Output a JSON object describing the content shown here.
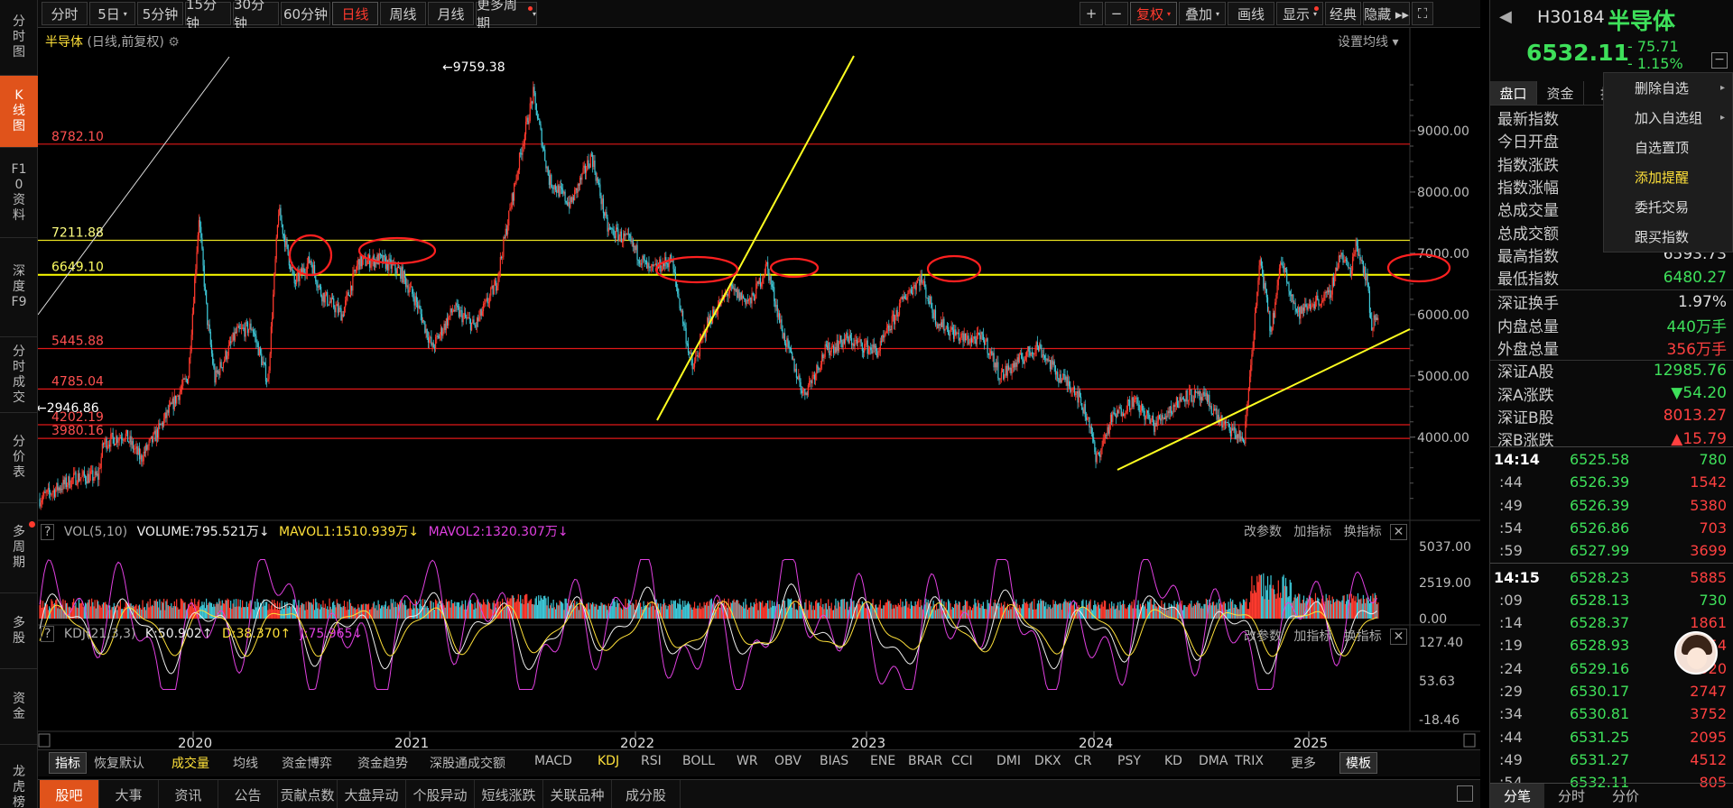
{
  "leftnav": [
    {
      "label": "分时图",
      "active": false
    },
    {
      "label": "K线图",
      "active": true
    },
    {
      "label": "F10资料",
      "active": false
    },
    {
      "label": "深度F9",
      "active": false
    },
    {
      "label": "分时成交",
      "active": false
    },
    {
      "label": "分价表",
      "active": false
    },
    {
      "label": "多周期",
      "active": false
    },
    {
      "label": "多股",
      "active": false
    },
    {
      "label": "资金",
      "active": false
    },
    {
      "label": "龙虎榜",
      "active": false
    }
  ],
  "toolbar": {
    "periods": [
      {
        "label": "分时"
      },
      {
        "label": "5日",
        "arrow": "▾"
      },
      {
        "label": "5分钟"
      },
      {
        "label": "15分钟"
      },
      {
        "label": "30分钟"
      },
      {
        "label": "60分钟"
      },
      {
        "label": "日线",
        "active": true
      },
      {
        "label": "周线"
      },
      {
        "label": "月线"
      },
      {
        "label": "更多周期",
        "arrow": "▾",
        "dot": true
      }
    ],
    "right": [
      {
        "label": "+"
      },
      {
        "label": "−"
      },
      {
        "label": "复权",
        "arrow": "▾",
        "active": true
      },
      {
        "label": "叠加",
        "arrow": "▾"
      },
      {
        "label": "画线"
      },
      {
        "label": "显示",
        "arrow": "▾",
        "dot": true
      },
      {
        "label": "经典"
      },
      {
        "label": "隐藏 ▸▸"
      },
      {
        "label": "⛶"
      }
    ]
  },
  "main": {
    "title": "半导体",
    "subtitle": "(日线,前复权)",
    "settings": "设置均线 ▾",
    "hlines": [
      {
        "label": "8782.10",
        "value": 8782.1,
        "color": "#e01818"
      },
      {
        "label": "7211.88",
        "value": 7211.88,
        "color": "#e8e020"
      },
      {
        "label": "6649.10",
        "value": 6649.1,
        "color": "#ffff00"
      },
      {
        "label": "5445.88",
        "value": 5445.88,
        "color": "#e01818"
      },
      {
        "label": "4785.04",
        "value": 4785.04,
        "color": "#e01818"
      },
      {
        "label": "4202.19",
        "value": 4202.19,
        "color": "#e01818"
      },
      {
        "label": "3980.16",
        "value": 3980.16,
        "color": "#e01818"
      }
    ],
    "yticks": [
      "9000.00",
      "8000.00",
      "7000.00",
      "6000.00",
      "5000.00",
      "4000.00"
    ],
    "high_label": "←9759.38",
    "low_label": "←2946.86",
    "years": [
      "2020",
      "2021",
      "2022",
      "2023",
      "2024",
      "2025"
    ]
  },
  "vol": {
    "name": "VOL(5,10)",
    "volume": "VOLUME:795.521万",
    "mavol1": "MAVOL1:1510.939万",
    "mavol2": "MAVOL2:1320.307万",
    "yticks": [
      "5037.00",
      "2519.00",
      "0.00"
    ],
    "buttons": [
      "改参数",
      "加指标",
      "换指标"
    ]
  },
  "kdj": {
    "name": "KDJ(21,3,3)",
    "k": "K:50.902",
    "d": "D:38.370",
    "j": "J:75.965",
    "yticks": [
      "127.40",
      "53.63",
      "-18.46"
    ],
    "buttons": [
      "改参数",
      "加指标",
      "换指标"
    ]
  },
  "indicators": [
    "指标",
    "恢复默认",
    "成交量",
    "均线",
    "资金博弈",
    "资金趋势",
    "深股通成交额",
    "MACD",
    "KDJ",
    "RSI",
    "BOLL",
    "WR",
    "OBV",
    "BIAS",
    "ENE",
    "BRAR",
    "CCI",
    "DMI",
    "DKX",
    "CR",
    "PSY",
    "KD",
    "DMA",
    "TRIX",
    "更多",
    "模板"
  ],
  "bottom_tabs": [
    "股吧",
    "大事",
    "资讯",
    "公告",
    "贡献点数",
    "大盘异动",
    "个股异动",
    "短线涨跌",
    "关联品种",
    "成分股"
  ],
  "quote": {
    "code": "H30184",
    "name": "半导体",
    "price": "6532.11",
    "change": "- 75.71",
    "pct": "- 1.15%",
    "tabs": [
      "盘口",
      "资金",
      "指"
    ],
    "rows": [
      {
        "k": "最新指数",
        "v": ""
      },
      {
        "k": "今日开盘",
        "v": ""
      },
      {
        "k": "指数涨跌",
        "v": ""
      },
      {
        "k": "指数涨幅",
        "v": ""
      },
      {
        "k": "总成交量",
        "v": ""
      },
      {
        "k": "总成交额",
        "v": ""
      },
      {
        "k": "最高指数",
        "v": "6593.73"
      },
      {
        "k": "最低指数",
        "v": "6480.27",
        "c": "g"
      },
      {
        "k": "深证换手",
        "v": "1.97%",
        "c": "w"
      },
      {
        "k": "内盘总量",
        "v": "440万手",
        "c": "g"
      },
      {
        "k": "外盘总量",
        "v": "356万手",
        "c": "r"
      },
      {
        "k": "深证A股",
        "v": "12985.76",
        "c": "g"
      },
      {
        "k": "深A涨跌",
        "v": "▼54.20",
        "c": "g"
      },
      {
        "k": "深证B股",
        "v": "8013.27",
        "c": "r"
      },
      {
        "k": "深B涨跌",
        "v": "▲15.79",
        "c": "r"
      }
    ],
    "ticks": [
      {
        "t": "14:14",
        "p": "6525.58",
        "v": "780",
        "vc": "g",
        "bold": true
      },
      {
        "t": ":44",
        "p": "6526.39",
        "v": "1542",
        "vc": "r"
      },
      {
        "t": ":49",
        "p": "6526.39",
        "v": "5380",
        "vc": "r"
      },
      {
        "t": ":54",
        "p": "6526.86",
        "v": "703",
        "vc": "r"
      },
      {
        "t": ":59",
        "p": "6527.99",
        "v": "3699",
        "vc": "r"
      },
      {
        "t": "14:15",
        "p": "6528.23",
        "v": "5885",
        "vc": "r",
        "bold": true
      },
      {
        "t": ":09",
        "p": "6528.13",
        "v": "730",
        "vc": "g"
      },
      {
        "t": ":14",
        "p": "6528.37",
        "v": "1861",
        "vc": "r"
      },
      {
        "t": ":19",
        "p": "6528.93",
        "v": "1754",
        "vc": "r"
      },
      {
        "t": ":24",
        "p": "6529.16",
        "v": "2520",
        "vc": "r"
      },
      {
        "t": ":29",
        "p": "6530.17",
        "v": "2747",
        "vc": "r"
      },
      {
        "t": ":34",
        "p": "6530.81",
        "v": "3752",
        "vc": "r"
      },
      {
        "t": ":44",
        "p": "6531.25",
        "v": "2095",
        "vc": "r"
      },
      {
        "t": ":49",
        "p": "6531.27",
        "v": "4512",
        "vc": "r"
      },
      {
        "t": ":54",
        "p": "6532.11",
        "v": "805",
        "vc": "r"
      }
    ],
    "bottom": [
      "分笔",
      "分时",
      "分价"
    ]
  },
  "menu": [
    {
      "label": "删除自选",
      "sub": true
    },
    {
      "label": "加入自选组",
      "sub": true
    },
    {
      "label": "自选置顶"
    },
    {
      "label": "添加提醒",
      "hl": true
    },
    {
      "label": "委托交易"
    },
    {
      "label": "跟买指数"
    }
  ],
  "colors": {
    "up": "#ff3a2e",
    "down": "#3ec8d8",
    "accent": "#e0531b",
    "yellow": "#ffff00"
  }
}
